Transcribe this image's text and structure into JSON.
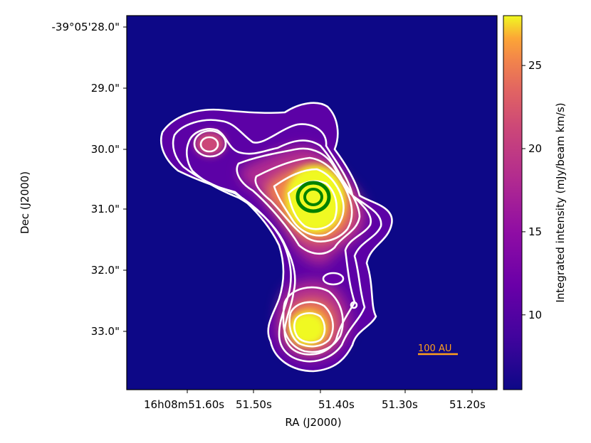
{
  "chart_data": {
    "type": "heatmap",
    "title": "",
    "xlabel": "RA (J2000)",
    "ylabel": "Dec (J2000)",
    "x_tick_labels": [
      "16h08m51.60s",
      "51.50s",
      "51.40s",
      "51.30s",
      "51.20s"
    ],
    "y_tick_labels": [
      "-39°05'28.0\"",
      "29.0\"",
      "30.0\"",
      "31.0\"",
      "32.0\"",
      "33.0\""
    ],
    "colorbar": {
      "label": "Integrated intensity (mJy/beam km/s)",
      "colormap": "plasma",
      "range": [
        5.5,
        28.0
      ],
      "ticks": [
        10,
        15,
        20,
        25
      ]
    },
    "background_value": 5.5,
    "scale_bar": {
      "label": "100 AU",
      "color": "#ff9f1c"
    },
    "contour_color": "#ffffff",
    "peak_marker_color": "#008000",
    "emission_components": [
      {
        "name": "central peak",
        "peak": 28.0
      },
      {
        "name": "southern knot",
        "peak": 27.5
      },
      {
        "name": "north-western knot",
        "peak": 17.0
      }
    ]
  }
}
